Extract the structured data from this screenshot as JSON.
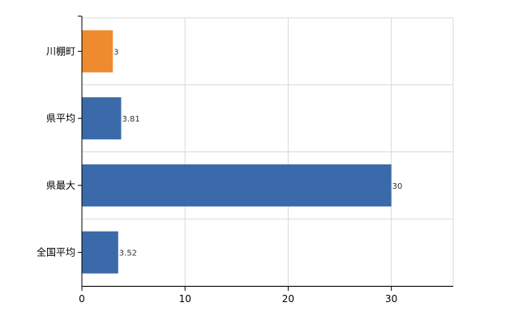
{
  "chart_data": {
    "type": "bar",
    "orientation": "horizontal",
    "categories": [
      "川棚町",
      "県平均",
      "県最大",
      "全国平均"
    ],
    "values": [
      3,
      3.81,
      30,
      3.52
    ],
    "data_labels": [
      "3",
      "3.81",
      "30",
      "3.52"
    ],
    "bar_colors": [
      "#ee8b2e",
      "#3a6aa9",
      "#3a6aa9",
      "#3a6aa9"
    ],
    "xlim": [
      0,
      36
    ],
    "x_ticks": [
      0,
      10,
      20,
      30
    ],
    "x_tick_labels": [
      "0",
      "10",
      "20",
      "30"
    ],
    "grid": true,
    "title": "",
    "xlabel": "",
    "ylabel": ""
  }
}
